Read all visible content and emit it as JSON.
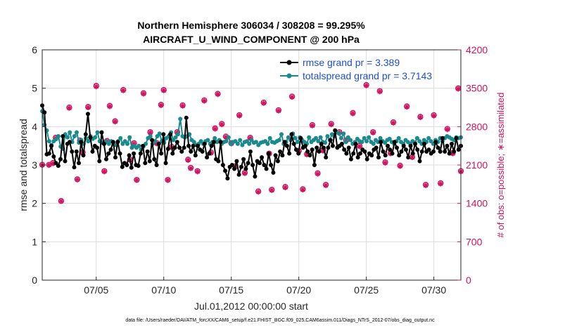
{
  "chart_data": {
    "type": "line",
    "title": "Northern Hemisphere 306034 / 308208 = 99.295%",
    "subtitle": "AIRCRAFT_U_WIND_COMPONENT @ 200 hPa",
    "xlabel": "Jul.01,2012 00:00:00 start",
    "ylabel": "rmse and totalspread",
    "ylabel_right": "# of obs: o=possible; ∗=assimilated",
    "footnote": "data file: /Users/raeder/DAI/ATM_forcXX/CAM6_setup/f.e21.FHIST_BGC.f09_025.CAM6assim.011/Diags_NTrS_2012-07/obs_diag_output.nc",
    "x_range_days": [
      1,
      32
    ],
    "xticks": [
      {
        "day": 5,
        "label": "07/05"
      },
      {
        "day": 10,
        "label": "07/10"
      },
      {
        "day": 15,
        "label": "07/15"
      },
      {
        "day": 20,
        "label": "07/20"
      },
      {
        "day": 25,
        "label": "07/25"
      },
      {
        "day": 30,
        "label": "07/30"
      }
    ],
    "ylim": [
      0,
      6
    ],
    "yticks": [
      "0",
      "1",
      "2",
      "3",
      "4",
      "5",
      "6"
    ],
    "ylim_right": [
      0,
      4200
    ],
    "yticks_right": [
      "0",
      "700",
      "1400",
      "2100",
      "2800",
      "3500",
      "4200"
    ],
    "grid": true,
    "series": [
      {
        "name": "rmse",
        "legend": "rmse grand pr = 3.389",
        "color": "#000000",
        "axis": "left",
        "values": [
          4.55,
          4.37,
          3.28,
          3.3,
          3.5,
          3.22,
          3.05,
          2.98,
          3.15,
          3.75,
          3.1,
          3.55,
          3.6,
          3.35,
          2.94,
          3.35,
          3.05,
          3.6,
          3.25,
          3.8,
          4.33,
          3.72,
          3.35,
          3.5,
          3.45,
          3.1,
          3.85,
          3.55,
          3.15,
          3.3,
          3.4,
          3.6,
          3.2,
          3.6,
          3.3,
          2.95,
          3.05,
          3.0,
          3.25,
          2.93,
          3.3,
          3.0,
          2.98,
          3.3,
          3.5,
          3.05,
          3.35,
          3.1,
          3.65,
          3.15,
          3.0,
          3.55,
          3.3,
          3.8,
          3.05,
          3.42,
          3.8,
          3.3,
          3.45,
          3.6,
          3.45,
          3.35,
          3.45,
          4.23,
          3.5,
          3.35,
          3.5,
          3.25,
          3.5,
          3.4,
          3.35,
          3.55,
          3.2,
          3.3,
          3.5,
          3.6,
          3.15,
          3.1,
          3.6,
          3.0,
          2.85,
          2.65,
          2.95,
          3.0,
          2.9,
          3.1,
          2.75,
          2.95,
          3.15,
          2.9,
          3.05,
          3.35,
          3.0,
          2.7,
          3.1,
          3.05,
          3.2,
          3.0,
          2.9,
          3.3,
          3.0,
          2.8,
          3.25,
          3.1,
          3.35,
          3.25,
          3.6,
          3.5,
          3.3,
          3.8,
          3.55,
          3.4,
          3.3,
          3.7,
          3.45,
          3.5,
          3.35,
          3.25,
          3.4,
          3.0,
          3.45,
          3.35,
          3.55,
          3.45,
          3.2,
          3.45,
          3.65,
          3.5,
          3.9,
          3.45,
          3.5,
          3.55,
          3.4,
          3.3,
          3.45,
          3.15,
          3.3,
          3.55,
          3.2,
          3.3,
          3.4,
          3.35,
          3.15,
          3.3,
          3.25,
          3.4,
          3.45,
          3.2,
          3.6,
          3.35,
          3.25,
          3.5,
          3.4,
          3.3,
          3.6,
          3.45,
          3.25,
          3.35,
          3.5,
          3.4,
          3.2,
          3.5,
          3.3,
          3.55,
          3.4,
          3.1,
          3.35,
          3.55,
          3.35,
          3.4,
          3.3,
          3.35,
          3.6,
          3.45,
          3.35,
          3.7,
          3.35,
          3.5,
          3.3,
          3.55,
          3.35,
          3.7,
          3.4,
          3.5
        ]
      },
      {
        "name": "totalspread",
        "legend": "totalspread grand pr = 3.7143",
        "color": "#1b8a8c",
        "axis": "left",
        "values": [
          4.4,
          4.05,
          3.9,
          3.62,
          3.52,
          3.62,
          3.67,
          3.75,
          3.48,
          3.42,
          3.8,
          3.72,
          3.85,
          3.6,
          3.75,
          3.85,
          3.58,
          3.65,
          3.55,
          3.7,
          3.62,
          3.75,
          3.68,
          3.72,
          3.85,
          3.62,
          3.58,
          3.55,
          3.62,
          3.55,
          3.62,
          3.55,
          3.52,
          3.62,
          3.7,
          3.55,
          3.62,
          3.55,
          3.72,
          3.45,
          3.5,
          3.45,
          3.5,
          3.4,
          3.48,
          3.55,
          3.7,
          3.75,
          3.55,
          3.62,
          3.75,
          3.82,
          3.62,
          3.58,
          3.7,
          3.75,
          3.85,
          3.65,
          3.72,
          3.8,
          4.2,
          3.75,
          3.72,
          3.75,
          3.8,
          3.65,
          3.6,
          3.52,
          3.55,
          3.62,
          3.55,
          3.62,
          3.65,
          3.55,
          3.6,
          3.7,
          3.6,
          3.65,
          3.55,
          3.6,
          3.62,
          3.72,
          3.55,
          3.6,
          3.62,
          3.55,
          3.65,
          3.52,
          3.6,
          3.62,
          3.55,
          3.65,
          3.58,
          3.6,
          3.52,
          3.58,
          3.6,
          3.62,
          3.55,
          3.7,
          3.6,
          3.58,
          3.62,
          3.65,
          3.8,
          3.55,
          3.6,
          3.72,
          3.65,
          3.82,
          3.7,
          3.6,
          3.72,
          3.65,
          3.6,
          3.55,
          3.72,
          3.6,
          3.65,
          3.7,
          3.62,
          3.72,
          3.6,
          3.58,
          3.75,
          3.65,
          3.8,
          3.75,
          3.85,
          3.82,
          3.7,
          3.82,
          3.6,
          3.72,
          3.65,
          3.55,
          3.6,
          3.68,
          3.62,
          3.6,
          3.7,
          3.62,
          3.72,
          3.6,
          3.55,
          3.65,
          3.6,
          3.7,
          3.62,
          3.58,
          3.65,
          3.68,
          3.6,
          3.55,
          3.62,
          3.7,
          3.6,
          3.55,
          3.65,
          3.6,
          3.55,
          3.62,
          3.58,
          3.7,
          3.62,
          3.55,
          3.65,
          3.6,
          3.7,
          3.62,
          3.55,
          3.65,
          3.6,
          3.7,
          3.62,
          3.7,
          3.75,
          3.72,
          3.68,
          3.65,
          3.72,
          3.7,
          3.72
        ]
      },
      {
        "name": "possible",
        "legend": "",
        "color": "#d0115f",
        "axis": "right",
        "style": "circle-markers",
        "points": [
          [
            1.0,
            2105
          ],
          [
            1.5,
            2105
          ],
          [
            1.8,
            2140
          ],
          [
            2.0,
            2600
          ],
          [
            2.4,
            1445
          ],
          [
            3.0,
            3150
          ],
          [
            3.6,
            1840
          ],
          [
            3.8,
            2550
          ],
          [
            4.0,
            2330
          ],
          [
            4.4,
            3160
          ],
          [
            5.0,
            3545
          ],
          [
            5.6,
            1990
          ],
          [
            5.8,
            2540
          ],
          [
            6.0,
            3180
          ],
          [
            6.4,
            2900
          ],
          [
            7.0,
            3470
          ],
          [
            7.5,
            2200
          ],
          [
            7.8,
            2500
          ],
          [
            8.0,
            1830
          ],
          [
            8.5,
            3410
          ],
          [
            9.0,
            2700
          ],
          [
            9.5,
            2500
          ],
          [
            9.8,
            3200
          ],
          [
            10.0,
            3470
          ],
          [
            10.3,
            1830
          ],
          [
            10.6,
            2430
          ],
          [
            11.0,
            2700
          ],
          [
            11.4,
            3190
          ],
          [
            11.8,
            2200
          ],
          [
            12.0,
            2050
          ],
          [
            12.5,
            1990
          ],
          [
            13.0,
            3280
          ],
          [
            13.5,
            2330
          ],
          [
            13.8,
            2770
          ],
          [
            14.0,
            3400
          ],
          [
            14.3,
            2850
          ],
          [
            14.6,
            2620
          ],
          [
            15.0,
            2500
          ],
          [
            15.3,
            2080
          ],
          [
            15.6,
            3010
          ],
          [
            16.0,
            1960
          ],
          [
            16.4,
            2600
          ],
          [
            17.0,
            1620
          ],
          [
            17.4,
            3240
          ],
          [
            17.8,
            2310
          ],
          [
            18.0,
            1650
          ],
          [
            18.5,
            3100
          ],
          [
            19.0,
            1700
          ],
          [
            19.5,
            3350
          ],
          [
            20.0,
            2360
          ],
          [
            20.3,
            1660
          ],
          [
            20.6,
            2300
          ],
          [
            21.0,
            2830
          ],
          [
            21.4,
            1950
          ],
          [
            21.8,
            2370
          ],
          [
            22.0,
            1740
          ],
          [
            22.4,
            2850
          ],
          [
            23.0,
            2700
          ],
          [
            23.5,
            2550
          ],
          [
            24.0,
            3050
          ],
          [
            24.5,
            2450
          ],
          [
            25.0,
            3560
          ],
          [
            25.5,
            2700
          ],
          [
            26.0,
            3450
          ],
          [
            26.4,
            2150
          ],
          [
            26.8,
            2320
          ],
          [
            27.0,
            2880
          ],
          [
            27.5,
            2090
          ],
          [
            28.0,
            3170
          ],
          [
            28.4,
            2250
          ],
          [
            29.0,
            2980
          ],
          [
            29.4,
            1740
          ],
          [
            30.0,
            3010
          ],
          [
            30.5,
            1770
          ],
          [
            31.0,
            2760
          ],
          [
            31.4,
            2320
          ],
          [
            31.8,
            3500
          ],
          [
            32.0,
            1990
          ]
        ]
      },
      {
        "name": "assimilated",
        "legend": "",
        "color": "#d0115f",
        "axis": "right",
        "style": "star-markers",
        "points": [
          [
            1.0,
            2100
          ],
          [
            1.5,
            2100
          ],
          [
            1.8,
            2130
          ],
          [
            2.0,
            2590
          ],
          [
            2.4,
            1440
          ],
          [
            3.0,
            3140
          ],
          [
            3.6,
            1835
          ],
          [
            3.8,
            2540
          ],
          [
            4.0,
            2320
          ],
          [
            4.4,
            3150
          ],
          [
            5.0,
            3530
          ],
          [
            5.6,
            1980
          ],
          [
            5.8,
            2530
          ],
          [
            6.0,
            3170
          ],
          [
            6.4,
            2890
          ],
          [
            7.0,
            3460
          ],
          [
            7.5,
            2190
          ],
          [
            7.8,
            2490
          ],
          [
            8.0,
            1825
          ],
          [
            8.5,
            3400
          ],
          [
            9.0,
            2690
          ],
          [
            9.5,
            2490
          ],
          [
            9.8,
            3190
          ],
          [
            10.0,
            3460
          ],
          [
            10.3,
            1825
          ],
          [
            10.6,
            2420
          ],
          [
            11.0,
            2690
          ],
          [
            11.4,
            3180
          ],
          [
            11.8,
            2190
          ],
          [
            12.0,
            2040
          ],
          [
            12.5,
            1980
          ],
          [
            13.0,
            3270
          ],
          [
            13.5,
            2320
          ],
          [
            13.8,
            2760
          ],
          [
            14.0,
            3390
          ],
          [
            14.3,
            2840
          ],
          [
            14.6,
            2610
          ],
          [
            15.0,
            2490
          ],
          [
            15.3,
            2070
          ],
          [
            15.6,
            3000
          ],
          [
            16.0,
            1950
          ],
          [
            16.4,
            2590
          ],
          [
            17.0,
            1610
          ],
          [
            17.4,
            3230
          ],
          [
            17.8,
            2300
          ],
          [
            18.0,
            1640
          ],
          [
            18.5,
            3090
          ],
          [
            19.0,
            1690
          ],
          [
            19.5,
            3340
          ],
          [
            20.0,
            2350
          ],
          [
            20.3,
            1650
          ],
          [
            20.6,
            2290
          ],
          [
            21.0,
            2820
          ],
          [
            21.4,
            1940
          ],
          [
            21.8,
            2360
          ],
          [
            22.0,
            1730
          ],
          [
            22.4,
            2840
          ],
          [
            23.0,
            2690
          ],
          [
            23.5,
            2540
          ],
          [
            24.0,
            3040
          ],
          [
            24.5,
            2440
          ],
          [
            25.0,
            3550
          ],
          [
            25.5,
            2690
          ],
          [
            26.0,
            3440
          ],
          [
            26.4,
            2140
          ],
          [
            26.8,
            2310
          ],
          [
            27.0,
            2870
          ],
          [
            27.5,
            2080
          ],
          [
            28.0,
            3160
          ],
          [
            28.4,
            2240
          ],
          [
            29.0,
            2970
          ],
          [
            29.4,
            1730
          ],
          [
            30.0,
            3000
          ],
          [
            30.5,
            1760
          ],
          [
            31.0,
            2750
          ],
          [
            31.4,
            2310
          ],
          [
            31.8,
            3490
          ],
          [
            32.0,
            1980
          ]
        ]
      }
    ]
  }
}
